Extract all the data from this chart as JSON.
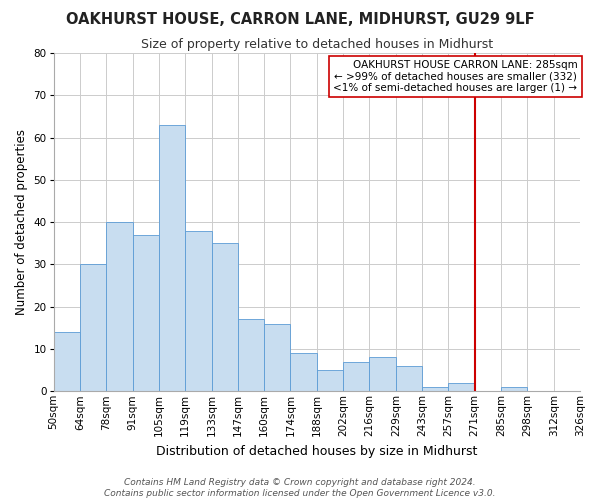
{
  "title": "OAKHURST HOUSE, CARRON LANE, MIDHURST, GU29 9LF",
  "subtitle": "Size of property relative to detached houses in Midhurst",
  "xlabel": "Distribution of detached houses by size in Midhurst",
  "ylabel": "Number of detached properties",
  "bar_heights": [
    14,
    30,
    40,
    37,
    63,
    38,
    35,
    17,
    16,
    9,
    5,
    7,
    8,
    6,
    1,
    2,
    0,
    1
  ],
  "bin_labels": [
    "50sqm",
    "64sqm",
    "78sqm",
    "91sqm",
    "105sqm",
    "119sqm",
    "133sqm",
    "147sqm",
    "160sqm",
    "174sqm",
    "188sqm",
    "202sqm",
    "216sqm",
    "229sqm",
    "243sqm",
    "257sqm",
    "271sqm",
    "285sqm",
    "298sqm",
    "312sqm",
    "326sqm"
  ],
  "bar_color": "#c8ddf0",
  "bar_edge_color": "#5b9bd5",
  "bar_width": 1.0,
  "ylim": [
    0,
    80
  ],
  "yticks": [
    0,
    10,
    20,
    30,
    40,
    50,
    60,
    70,
    80
  ],
  "vline_x_index": 16,
  "vline_color": "#cc0000",
  "grid_color": "#cccccc",
  "plot_bg_color": "#ffffff",
  "fig_bg_color": "#ffffff",
  "legend_title": "OAKHURST HOUSE CARRON LANE: 285sqm",
  "legend_line1": "← >99% of detached houses are smaller (332)",
  "legend_line2": "<1% of semi-detached houses are larger (1) →",
  "footer1": "Contains HM Land Registry data © Crown copyright and database right 2024.",
  "footer2": "Contains public sector information licensed under the Open Government Licence v3.0.",
  "title_fontsize": 10.5,
  "subtitle_fontsize": 9,
  "xlabel_fontsize": 9,
  "ylabel_fontsize": 8.5,
  "tick_fontsize": 7.5,
  "legend_fontsize": 7.5,
  "footer_fontsize": 6.5
}
